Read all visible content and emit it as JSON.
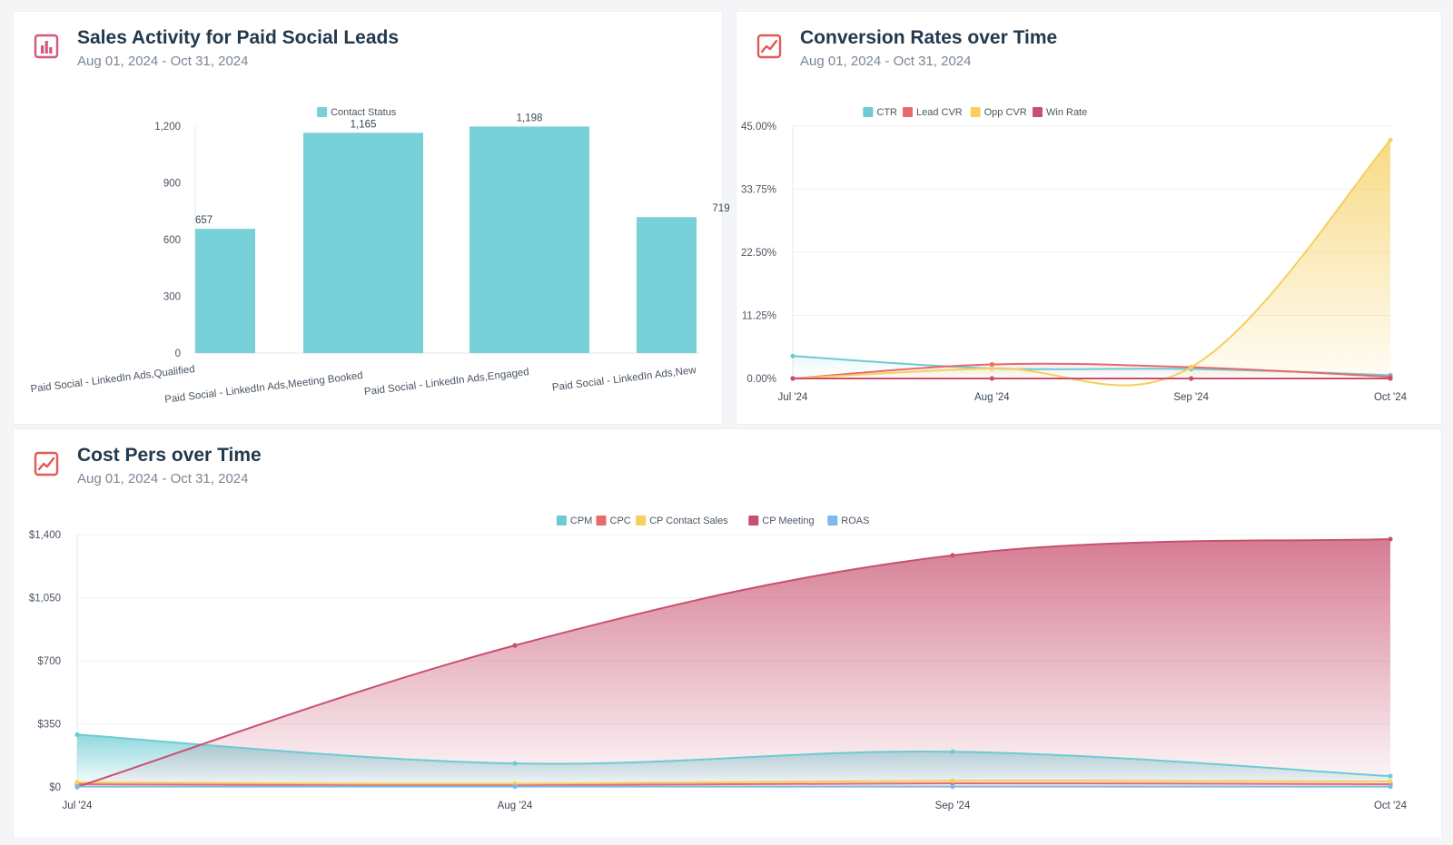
{
  "cards": [
    {
      "title": "Sales Activity for Paid Social Leads",
      "subtitle": "Aug 01, 2024 - Oct 31, 2024",
      "icon": "bar-chart-icon"
    },
    {
      "title": "Conversion Rates over Time",
      "subtitle": "Aug 01, 2024 - Oct 31, 2024",
      "icon": "line-chart-icon"
    },
    {
      "title": "Cost Pers over Time",
      "subtitle": "Aug 01, 2024 - Oct 31, 2024",
      "icon": "line-chart-icon"
    }
  ],
  "chart_data": [
    {
      "type": "bar",
      "categories": [
        "Paid Social - LinkedIn Ads,Qualified",
        "Paid Social - LinkedIn Ads,Meeting Booked",
        "Paid Social - LinkedIn Ads,Engaged",
        "Paid Social - LinkedIn Ads,New"
      ],
      "series": [
        {
          "name": "Contact Status",
          "values": [
            657,
            1165,
            1198,
            719
          ],
          "color": "#78d0d8"
        }
      ],
      "data_labels": [
        "657",
        "1,165",
        "1,198",
        "719"
      ],
      "ylim": [
        0,
        1200
      ],
      "yticks": [
        0,
        300,
        600,
        900,
        1200
      ],
      "ytick_labels": [
        "0",
        "300",
        "600",
        "900",
        "1,200"
      ],
      "legend_position": "top",
      "grid": false
    },
    {
      "type": "area",
      "x": [
        "Jul '24",
        "Aug '24",
        "Sep '24",
        "Oct '24"
      ],
      "series": [
        {
          "name": "CTR",
          "values": [
            4.0,
            1.8,
            1.7,
            0.6
          ],
          "color": "#6ccbd3"
        },
        {
          "name": "Lead CVR",
          "values": [
            0.0,
            2.5,
            2.0,
            0.3
          ],
          "color": "#e86a6a"
        },
        {
          "name": "Opp CVR",
          "values": [
            0.0,
            1.8,
            2.0,
            42.5
          ],
          "color": "#f6cf5e"
        },
        {
          "name": "Win Rate",
          "values": [
            0.0,
            0.0,
            0.0,
            0.0
          ],
          "color": "#c8506f"
        }
      ],
      "ylim": [
        0,
        45
      ],
      "yticks": [
        0,
        11.25,
        22.5,
        33.75,
        45
      ],
      "ytick_labels": [
        "0.00%",
        "11.25%",
        "22.50%",
        "33.75%",
        "45.00%"
      ],
      "legend_position": "top",
      "grid": true
    },
    {
      "type": "area",
      "x": [
        "Jul '24",
        "Aug '24",
        "Sep '24",
        "Oct '24"
      ],
      "series": [
        {
          "name": "CPM",
          "values": [
            290,
            130,
            195,
            60
          ],
          "color": "#6ccbd3"
        },
        {
          "name": "CPC",
          "values": [
            15,
            10,
            20,
            15
          ],
          "color": "#e86a6a"
        },
        {
          "name": "CP Contact Sales",
          "values": [
            25,
            18,
            35,
            30
          ],
          "color": "#f6cf5e"
        },
        {
          "name": "CP Meeting",
          "values": [
            0,
            785,
            1285,
            1375
          ],
          "color": "#c8506f"
        },
        {
          "name": "ROAS",
          "values": [
            2,
            2,
            2,
            2
          ],
          "color": "#7fb8ec"
        }
      ],
      "ylim": [
        0,
        1400
      ],
      "yticks": [
        0,
        350,
        700,
        1050,
        1400
      ],
      "ytick_labels": [
        "$0",
        "$350",
        "$700",
        "$1,050",
        "$1,400"
      ],
      "legend_position": "top",
      "grid": true
    }
  ]
}
